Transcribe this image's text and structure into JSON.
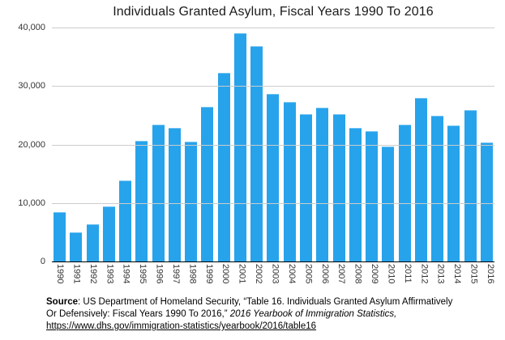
{
  "chart_data": {
    "type": "bar",
    "title": "Individuals Granted Asylum, Fiscal Years 1990 To 2016",
    "categories": [
      "1990",
      "1991",
      "1992",
      "1993",
      "1994",
      "1995",
      "1996",
      "1997",
      "1998",
      "1999",
      "2000",
      "2001",
      "2002",
      "2003",
      "2004",
      "2005",
      "2006",
      "2007",
      "2008",
      "2009",
      "2010",
      "2011",
      "2012",
      "2013",
      "2014",
      "2015",
      "2016"
    ],
    "values": [
      8500,
      5000,
      6300,
      9400,
      13800,
      20600,
      23400,
      22900,
      20500,
      26500,
      32300,
      39000,
      36800,
      28600,
      27200,
      25200,
      26300,
      25200,
      22900,
      22300,
      19700,
      23400,
      27900,
      24900,
      23200,
      25900,
      20400
    ],
    "xlabel": "",
    "ylabel": "",
    "ylim": [
      0,
      40000
    ],
    "yticks": [
      0,
      10000,
      20000,
      30000,
      40000
    ],
    "ytick_labels": [
      "0",
      "10,000",
      "20,000",
      "30,000",
      "40,000"
    ],
    "grid": "horizontal gridlines on",
    "legend": "none",
    "bar_color": "#27A3EB",
    "gridline_color": "#cccccc",
    "axis_color": "#000000",
    "label_color": "#333333"
  },
  "source": {
    "label": "Source",
    "line1_rest": ": US Department of Homeland Security, “Table 16. Individuals Granted Asylum Affirmatively",
    "line2_normal": "Or Defensively: Fiscal Years 1990 To 2016,” ",
    "line2_italic": " 2016 Yearbook of Immigration Statistics,",
    "link": "https://www.dhs.gov/immigration-statistics/yearbook/2016/table16"
  }
}
